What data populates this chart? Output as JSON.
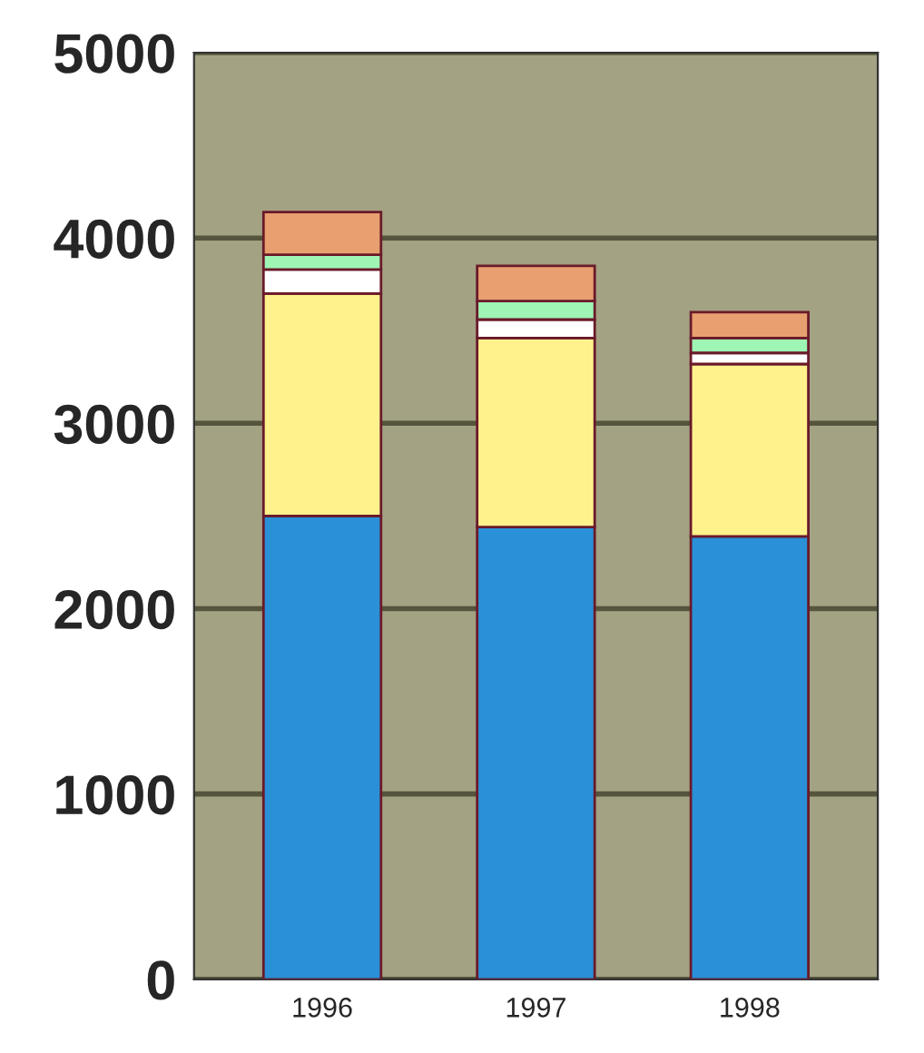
{
  "chart_data": {
    "type": "bar",
    "stacked": true,
    "categories": [
      "1996",
      "1997",
      "1998"
    ],
    "series": [
      {
        "color": "#2a90d8",
        "values": [
          2500,
          2440,
          2390
        ]
      },
      {
        "color": "#fff28c",
        "values": [
          1200,
          1020,
          930
        ]
      },
      {
        "color": "#ffffff",
        "values": [
          130,
          100,
          60
        ]
      },
      {
        "color": "#9ef5b4",
        "values": [
          80,
          100,
          80
        ]
      },
      {
        "color": "#e8a070",
        "values": [
          230,
          190,
          140
        ]
      }
    ],
    "ylim": [
      0,
      5000
    ],
    "yticks": [
      0,
      1000,
      2000,
      3000,
      4000,
      5000
    ],
    "grid": "y",
    "legend": false
  }
}
